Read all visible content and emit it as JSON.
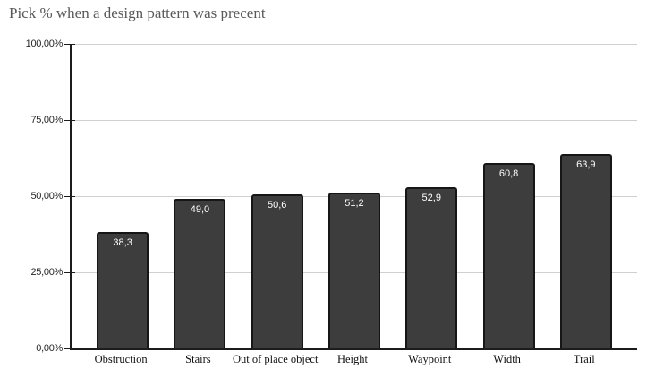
{
  "title": "Pick % when a design pattern was precent",
  "colors": {
    "bar_fill": "#3d3d3d",
    "bar_border": "#161616",
    "gridline": "#d0d0d0",
    "axis": "#1c1c1c",
    "title_text": "#595959",
    "data_label": "#ffffff",
    "background": "#ffffff"
  },
  "chart_data": {
    "type": "bar",
    "title": "Pick % when a design pattern was precent",
    "categories": [
      "Obstruction",
      "Stairs",
      "Out of place object",
      "Height",
      "Waypoint",
      "Width",
      "Trail"
    ],
    "values": [
      38.3,
      49.0,
      50.6,
      51.2,
      52.9,
      60.8,
      63.9
    ],
    "value_labels": [
      "38,3",
      "49,0",
      "50,6",
      "51,2",
      "52,9",
      "60,8",
      "63,9"
    ],
    "xlabel": "",
    "ylabel": "",
    "ylim": [
      0,
      100
    ],
    "y_ticks": [
      {
        "value": 0,
        "label": "0,00%"
      },
      {
        "value": 25,
        "label": "25,00%"
      },
      {
        "value": 50,
        "label": "50,00%"
      },
      {
        "value": 75,
        "label": "75,00%"
      },
      {
        "value": 100,
        "label": "100,00%"
      }
    ],
    "grid": true,
    "legend": false,
    "decimal_separator": ","
  }
}
